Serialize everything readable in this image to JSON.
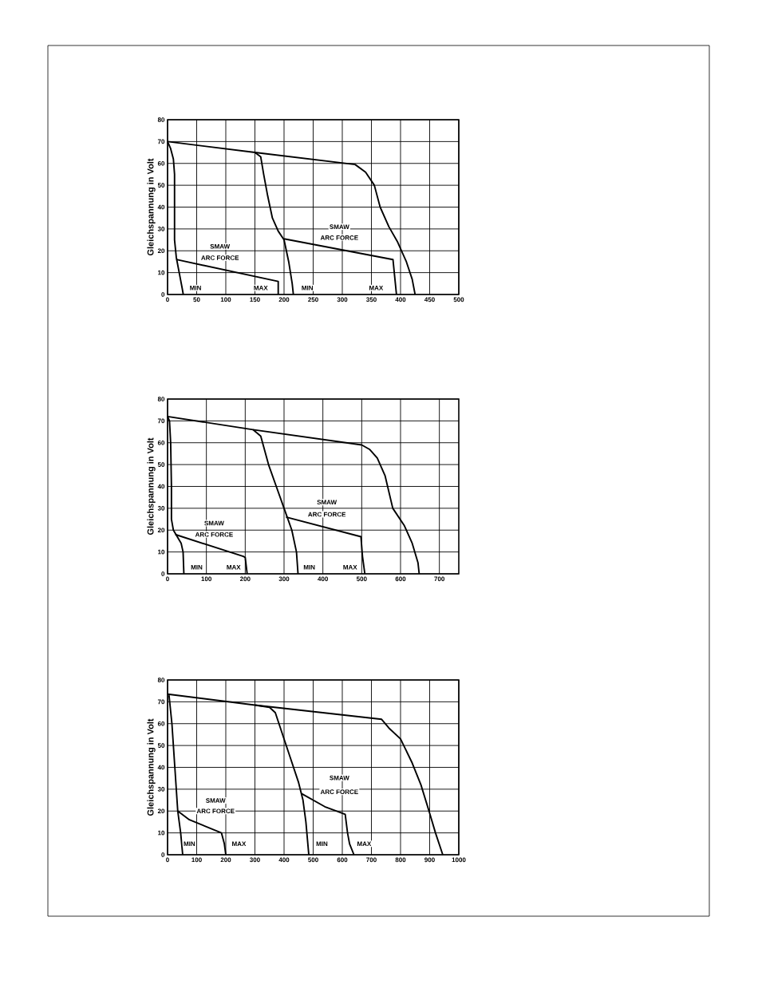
{
  "chart_data": [
    {
      "type": "line",
      "ylabel": "Gleichspannung in Volt",
      "xlim": [
        0,
        500
      ],
      "ylim": [
        0,
        80
      ],
      "xticks": [
        0,
        50,
        100,
        150,
        200,
        250,
        300,
        350,
        400,
        450,
        500
      ],
      "yticks": [
        0,
        10,
        20,
        30,
        40,
        50,
        60,
        70,
        80
      ],
      "grid": true,
      "series": [
        {
          "color": "#000000",
          "x": [
            0,
            5,
            10,
            12,
            12,
            15,
            20,
            25,
            27
          ],
          "values": [
            70,
            67,
            62,
            55,
            25,
            17,
            10,
            3,
            0
          ]
        },
        {
          "color": "#000000",
          "x": [
            15,
            190,
            190
          ],
          "values": [
            16,
            6,
            0
          ]
        },
        {
          "color": "#000000",
          "x": [
            0,
            150,
            322,
            340,
            355,
            365,
            380,
            395,
            410,
            420,
            425
          ],
          "values": [
            70,
            65,
            59.5,
            56,
            50,
            40,
            31,
            24,
            15,
            7,
            0
          ]
        },
        {
          "color": "#000000",
          "x": [
            150,
            160,
            165,
            172,
            180,
            190,
            200,
            208,
            214,
            216
          ],
          "values": [
            65,
            63,
            55,
            45,
            35,
            29,
            25,
            15,
            5,
            0
          ]
        },
        {
          "color": "#000000",
          "x": [
            200,
            387,
            390,
            393
          ],
          "values": [
            25.5,
            16,
            8,
            0
          ]
        }
      ],
      "annotations": [
        "SMAW",
        "ARC FORCE",
        "SMAW",
        "ARC FORCE",
        {
          "text": "MIN",
          "x": 48,
          "y": 3
        },
        {
          "text": "MAX",
          "x": 160,
          "y": 3
        },
        {
          "text": "MIN",
          "x": 240,
          "y": 3
        },
        {
          "text": "MAX",
          "x": 358,
          "y": 3
        }
      ]
    },
    {
      "type": "line",
      "ylabel": "Gleichspannung in Volt",
      "xlim": [
        0,
        750
      ],
      "ylim": [
        0,
        80
      ],
      "xticks": [
        0,
        100,
        200,
        300,
        400,
        500,
        600,
        700
      ],
      "yticks": [
        0,
        10,
        20,
        30,
        40,
        50,
        60,
        70,
        80
      ],
      "grid": true,
      "series": [
        {
          "color": "#000000",
          "x": [
            0,
            5,
            8,
            10,
            10,
            15,
            25,
            35,
            40,
            42
          ],
          "values": [
            72,
            70,
            60,
            40,
            25,
            20,
            17,
            14,
            10,
            0
          ]
        },
        {
          "color": "#000000",
          "x": [
            20,
            195,
            200,
            205
          ],
          "values": [
            18,
            8,
            7.5,
            0
          ]
        },
        {
          "color": "#000000",
          "x": [
            0,
            220,
            500,
            520,
            540,
            560,
            580,
            610,
            630,
            645,
            648
          ],
          "values": [
            72,
            66,
            59,
            57,
            53,
            45,
            30,
            22,
            14,
            5,
            0
          ]
        },
        {
          "color": "#000000",
          "x": [
            220,
            240,
            260,
            280,
            300,
            320,
            332,
            336
          ],
          "values": [
            66,
            63,
            50,
            40,
            30,
            20,
            10,
            0
          ]
        },
        {
          "color": "#000000",
          "x": [
            305,
            498,
            502,
            508
          ],
          "values": [
            26,
            17,
            8,
            0
          ]
        }
      ],
      "annotations": [
        "SMAW",
        "ARC FORCE",
        "SMAW",
        "ARC FORCE",
        {
          "text": "MIN",
          "x": 75,
          "y": 3
        },
        {
          "text": "MAX",
          "x": 170,
          "y": 3
        },
        {
          "text": "MIN",
          "x": 365,
          "y": 3
        },
        {
          "text": "MAX",
          "x": 470,
          "y": 3
        }
      ]
    },
    {
      "type": "line",
      "ylabel": "Gleichspannung in Volt",
      "xlim": [
        0,
        1000
      ],
      "ylim": [
        0,
        80
      ],
      "xticks": [
        0,
        100,
        200,
        300,
        400,
        500,
        600,
        700,
        800,
        900,
        1000
      ],
      "yticks": [
        0,
        10,
        20,
        30,
        40,
        50,
        60,
        70,
        80
      ],
      "grid": true,
      "series": [
        {
          "color": "#000000",
          "x": [
            5,
            15,
            25,
            35,
            45,
            52
          ],
          "values": [
            73,
            60,
            40,
            20,
            10,
            0
          ]
        },
        {
          "color": "#000000",
          "x": [
            35,
            75,
            185,
            195,
            200
          ],
          "values": [
            20,
            16,
            10,
            5,
            0
          ]
        },
        {
          "color": "#000000",
          "x": [
            0,
            300,
            735,
            760,
            800,
            840,
            870,
            900,
            920,
            945
          ],
          "values": [
            73.5,
            68.5,
            62,
            58,
            53,
            42,
            32,
            19,
            10,
            0
          ]
        },
        {
          "color": "#000000",
          "x": [
            300,
            350,
            370,
            395,
            420,
            450,
            465,
            475,
            485
          ],
          "values": [
            68.5,
            67.5,
            65,
            55,
            45,
            33,
            25,
            15,
            0
          ]
        },
        {
          "color": "#000000",
          "x": [
            460,
            540,
            610,
            618,
            625,
            640
          ],
          "values": [
            28,
            22,
            18.5,
            10,
            5,
            0
          ]
        }
      ],
      "annotations": [
        "SMAW",
        "ARC FORCE",
        "SMAW",
        "ARC FORCE",
        {
          "text": "MIN",
          "x": 75,
          "y": 5
        },
        {
          "text": "MAX",
          "x": 245,
          "y": 5
        },
        {
          "text": "MIN",
          "x": 530,
          "y": 5
        },
        {
          "text": "MAX",
          "x": 675,
          "y": 5
        }
      ]
    }
  ]
}
